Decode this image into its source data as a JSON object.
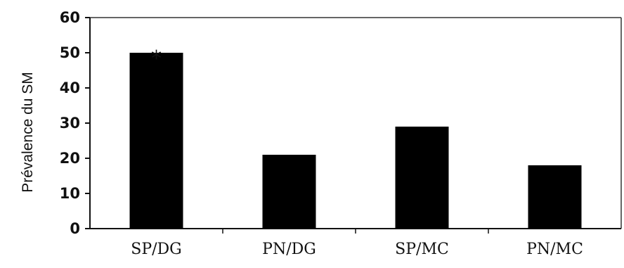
{
  "chart_data": {
    "type": "bar",
    "ylabel": "Prévalence du SM",
    "xlabel": "",
    "categories": [
      "SP/DG",
      "PN/DG",
      "SP/MC",
      "PN/MC"
    ],
    "values": [
      50,
      21,
      29,
      18
    ],
    "ylim": [
      0,
      60
    ],
    "yticks": [
      "0",
      "10",
      "20",
      "30",
      "40",
      "50",
      "60"
    ],
    "bar_color": "#000000",
    "grid": false,
    "annotations": [
      {
        "category": "SP/DG",
        "text": "*"
      }
    ]
  }
}
